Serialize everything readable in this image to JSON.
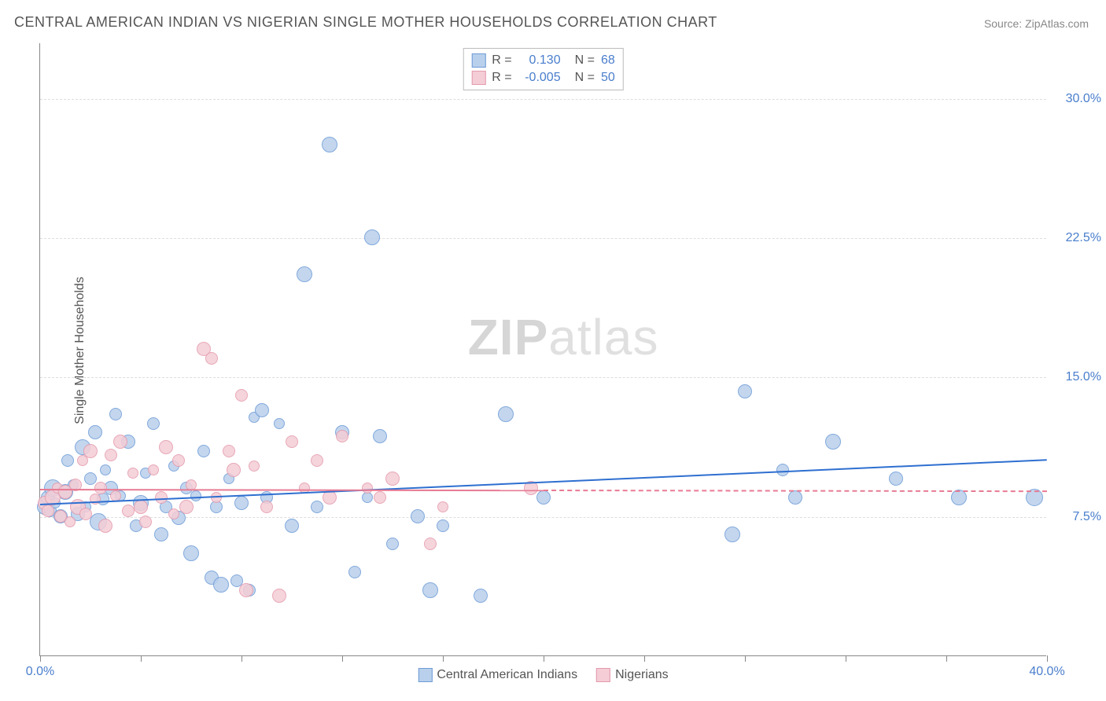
{
  "title": "CENTRAL AMERICAN INDIAN VS NIGERIAN SINGLE MOTHER HOUSEHOLDS CORRELATION CHART",
  "source_label": "Source: ZipAtlas.com",
  "ylabel": "Single Mother Households",
  "watermark": {
    "bold": "ZIP",
    "light": "atlas"
  },
  "chart": {
    "type": "scatter",
    "xlim": [
      0,
      40
    ],
    "ylim": [
      0,
      33
    ],
    "x_ticks": [
      0,
      4,
      8,
      12,
      16,
      20,
      24,
      28,
      32,
      36,
      40
    ],
    "x_tick_labels": {
      "0": "0.0%",
      "40": "40.0%"
    },
    "y_gridlines": [
      7.5,
      15.0,
      22.5,
      30.0
    ],
    "y_tick_labels": [
      "7.5%",
      "15.0%",
      "22.5%",
      "30.0%"
    ],
    "grid_color": "#dddddd",
    "axis_color": "#888888",
    "background_color": "#ffffff",
    "point_radius_range": [
      6,
      13
    ],
    "label_fontsize": 16,
    "title_fontsize": 18,
    "tick_color_blue": "#4a7ecc",
    "series": [
      {
        "name": "Central American Indians",
        "fill": "#b9d0ec",
        "stroke": "#6d9bd6",
        "trend_color": "#2e6fd0",
        "R": "0.130",
        "N": "68",
        "trend": {
          "x1": 0,
          "y1": 8.2,
          "x2": 40,
          "y2": 10.6,
          "solid_to_x": 40
        },
        "points": [
          [
            0.2,
            8.0,
            10
          ],
          [
            0.3,
            8.5,
            9
          ],
          [
            0.4,
            7.8,
            8
          ],
          [
            0.5,
            9.0,
            11
          ],
          [
            0.6,
            8.2,
            7
          ],
          [
            0.8,
            7.5,
            9
          ],
          [
            1.0,
            8.8,
            10
          ],
          [
            1.1,
            10.5,
            8
          ],
          [
            1.3,
            9.2,
            7
          ],
          [
            1.5,
            7.6,
            9
          ],
          [
            1.7,
            11.2,
            10
          ],
          [
            1.8,
            8.0,
            7
          ],
          [
            2.0,
            9.5,
            8
          ],
          [
            2.2,
            12.0,
            9
          ],
          [
            2.3,
            7.2,
            11
          ],
          [
            2.5,
            8.4,
            8
          ],
          [
            2.6,
            10.0,
            7
          ],
          [
            2.8,
            9.0,
            9
          ],
          [
            3.0,
            13.0,
            8
          ],
          [
            3.2,
            8.6,
            7
          ],
          [
            3.5,
            11.5,
            9
          ],
          [
            3.8,
            7.0,
            8
          ],
          [
            4.0,
            8.2,
            10
          ],
          [
            4.2,
            9.8,
            7
          ],
          [
            4.5,
            12.5,
            8
          ],
          [
            4.8,
            6.5,
            9
          ],
          [
            5.0,
            8.0,
            8
          ],
          [
            5.3,
            10.2,
            7
          ],
          [
            5.5,
            7.4,
            9
          ],
          [
            5.8,
            9.0,
            8
          ],
          [
            6.0,
            5.5,
            10
          ],
          [
            6.2,
            8.6,
            7
          ],
          [
            6.5,
            11.0,
            8
          ],
          [
            6.8,
            4.2,
            9
          ],
          [
            7.0,
            8.0,
            8
          ],
          [
            7.2,
            3.8,
            10
          ],
          [
            7.5,
            9.5,
            7
          ],
          [
            7.8,
            4.0,
            8
          ],
          [
            8.0,
            8.2,
            9
          ],
          [
            8.3,
            3.5,
            8
          ],
          [
            8.5,
            12.8,
            7
          ],
          [
            8.8,
            13.2,
            9
          ],
          [
            9.0,
            8.5,
            8
          ],
          [
            9.5,
            12.5,
            7
          ],
          [
            10.0,
            7.0,
            9
          ],
          [
            10.5,
            20.5,
            10
          ],
          [
            11.0,
            8.0,
            8
          ],
          [
            11.5,
            27.5,
            10
          ],
          [
            12.0,
            12.0,
            9
          ],
          [
            12.5,
            4.5,
            8
          ],
          [
            13.0,
            8.5,
            7
          ],
          [
            13.2,
            22.5,
            10
          ],
          [
            13.5,
            11.8,
            9
          ],
          [
            14.0,
            6.0,
            8
          ],
          [
            15.0,
            7.5,
            9
          ],
          [
            15.5,
            3.5,
            10
          ],
          [
            16.0,
            7.0,
            8
          ],
          [
            17.5,
            3.2,
            9
          ],
          [
            18.5,
            13.0,
            10
          ],
          [
            20.0,
            8.5,
            9
          ],
          [
            27.5,
            6.5,
            10
          ],
          [
            28.0,
            14.2,
            9
          ],
          [
            29.5,
            10.0,
            8
          ],
          [
            30.0,
            8.5,
            9
          ],
          [
            31.5,
            11.5,
            10
          ],
          [
            34.0,
            9.5,
            9
          ],
          [
            36.5,
            8.5,
            10
          ],
          [
            39.5,
            8.5,
            11
          ]
        ]
      },
      {
        "name": "Nigerians",
        "fill": "#f4cdd6",
        "stroke": "#e49aac",
        "trend_color": "#e77b94",
        "R": "-0.005",
        "N": "50",
        "trend": {
          "x1": 0,
          "y1": 9.0,
          "x2": 40,
          "y2": 8.9,
          "solid_to_x": 20
        },
        "points": [
          [
            0.2,
            8.2,
            9
          ],
          [
            0.3,
            7.8,
            8
          ],
          [
            0.5,
            8.5,
            10
          ],
          [
            0.7,
            9.0,
            7
          ],
          [
            0.8,
            7.5,
            8
          ],
          [
            1.0,
            8.8,
            9
          ],
          [
            1.2,
            7.2,
            7
          ],
          [
            1.4,
            9.2,
            8
          ],
          [
            1.5,
            8.0,
            10
          ],
          [
            1.7,
            10.5,
            7
          ],
          [
            1.8,
            7.6,
            8
          ],
          [
            2.0,
            11.0,
            9
          ],
          [
            2.2,
            8.4,
            7
          ],
          [
            2.4,
            9.0,
            8
          ],
          [
            2.6,
            7.0,
            9
          ],
          [
            2.8,
            10.8,
            8
          ],
          [
            3.0,
            8.6,
            7
          ],
          [
            3.2,
            11.5,
            9
          ],
          [
            3.5,
            7.8,
            8
          ],
          [
            3.7,
            9.8,
            7
          ],
          [
            4.0,
            8.0,
            9
          ],
          [
            4.2,
            7.2,
            8
          ],
          [
            4.5,
            10.0,
            7
          ],
          [
            4.8,
            8.5,
            8
          ],
          [
            5.0,
            11.2,
            9
          ],
          [
            5.3,
            7.6,
            7
          ],
          [
            5.5,
            10.5,
            8
          ],
          [
            5.8,
            8.0,
            9
          ],
          [
            6.0,
            9.2,
            7
          ],
          [
            6.5,
            16.5,
            9
          ],
          [
            6.8,
            16.0,
            8
          ],
          [
            7.0,
            8.5,
            7
          ],
          [
            7.5,
            11.0,
            8
          ],
          [
            7.7,
            10.0,
            9
          ],
          [
            8.0,
            14.0,
            8
          ],
          [
            8.2,
            3.5,
            9
          ],
          [
            8.5,
            10.2,
            7
          ],
          [
            9.0,
            8.0,
            8
          ],
          [
            9.5,
            3.2,
            9
          ],
          [
            10.0,
            11.5,
            8
          ],
          [
            10.5,
            9.0,
            7
          ],
          [
            11.0,
            10.5,
            8
          ],
          [
            11.5,
            8.5,
            9
          ],
          [
            12.0,
            11.8,
            8
          ],
          [
            13.0,
            9.0,
            7
          ],
          [
            13.5,
            8.5,
            8
          ],
          [
            14.0,
            9.5,
            9
          ],
          [
            15.5,
            6.0,
            8
          ],
          [
            16.0,
            8.0,
            7
          ],
          [
            19.5,
            9.0,
            9
          ]
        ]
      }
    ],
    "stats_legend": {
      "r_label": "R =",
      "n_label": "N =",
      "value_color": "#4a7ecc",
      "label_color": "#555555"
    },
    "bottom_legend_color": "#555555"
  }
}
